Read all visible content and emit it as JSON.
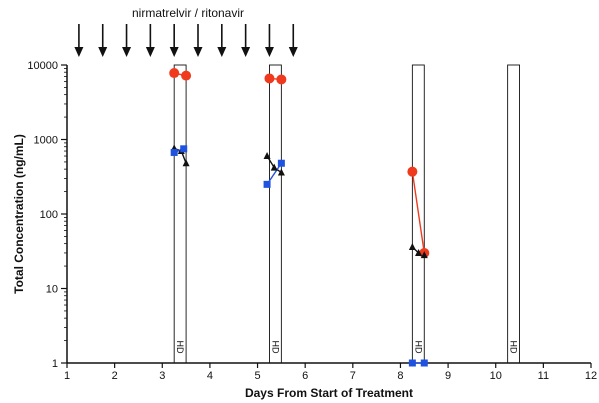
{
  "chart_data": {
    "type": "scatter",
    "title": "",
    "xlabel": "Days From Start of Treatment",
    "ylabel": "Total Concentration (ng/mL)",
    "xlim": [
      1,
      12
    ],
    "ylim": [
      1,
      10000
    ],
    "yscale": "log",
    "xticks": [
      1,
      2,
      3,
      4,
      5,
      6,
      7,
      8,
      9,
      10,
      11,
      12
    ],
    "yticks": [
      {
        "value": 1,
        "label": "1"
      },
      {
        "value": 10,
        "label": "10"
      },
      {
        "value": 100,
        "label": "100"
      },
      {
        "value": 1000,
        "label": "1000"
      },
      {
        "value": 10000,
        "label": "10000"
      }
    ],
    "grid": false,
    "annotation": "nirmatrelvir / ritonavir",
    "dose_days": [
      1.25,
      1.75,
      2.25,
      2.75,
      3.25,
      3.75,
      4.25,
      4.75,
      5.25,
      5.75
    ],
    "hd_sessions": [
      {
        "start": 3.25,
        "end": 3.5,
        "label": "HD"
      },
      {
        "start": 5.25,
        "end": 5.5,
        "label": "HD"
      },
      {
        "start": 8.25,
        "end": 8.5,
        "label": "HD"
      },
      {
        "start": 10.25,
        "end": 10.5,
        "label": "HD"
      }
    ],
    "series": [
      {
        "marker": "circle",
        "color": "#f03a1e",
        "segments": [
          [
            {
              "x": 3.25,
              "y": 7800
            },
            {
              "x": 3.5,
              "y": 7200
            }
          ],
          [
            {
              "x": 5.25,
              "y": 6600
            },
            {
              "x": 5.5,
              "y": 6400
            }
          ],
          [
            {
              "x": 8.25,
              "y": 370
            },
            {
              "x": 8.5,
              "y": 30
            }
          ]
        ]
      },
      {
        "marker": "triangle",
        "color": "#111111",
        "segments": [
          [
            {
              "x": 3.25,
              "y": 760
            },
            {
              "x": 3.4,
              "y": 700
            },
            {
              "x": 3.5,
              "y": 480
            }
          ],
          [
            {
              "x": 5.2,
              "y": 600
            },
            {
              "x": 5.35,
              "y": 420
            },
            {
              "x": 5.5,
              "y": 360
            }
          ],
          [
            {
              "x": 8.25,
              "y": 36
            },
            {
              "x": 8.38,
              "y": 30
            },
            {
              "x": 8.5,
              "y": 28
            }
          ]
        ]
      },
      {
        "marker": "square",
        "color": "#1f52e0",
        "segments": [
          [
            {
              "x": 3.25,
              "y": 670
            },
            {
              "x": 3.45,
              "y": 750
            }
          ],
          [
            {
              "x": 5.2,
              "y": 250
            },
            {
              "x": 5.5,
              "y": 480
            }
          ],
          [
            {
              "x": 8.25,
              "y": 1
            },
            {
              "x": 8.5,
              "y": 1
            }
          ]
        ]
      }
    ]
  }
}
